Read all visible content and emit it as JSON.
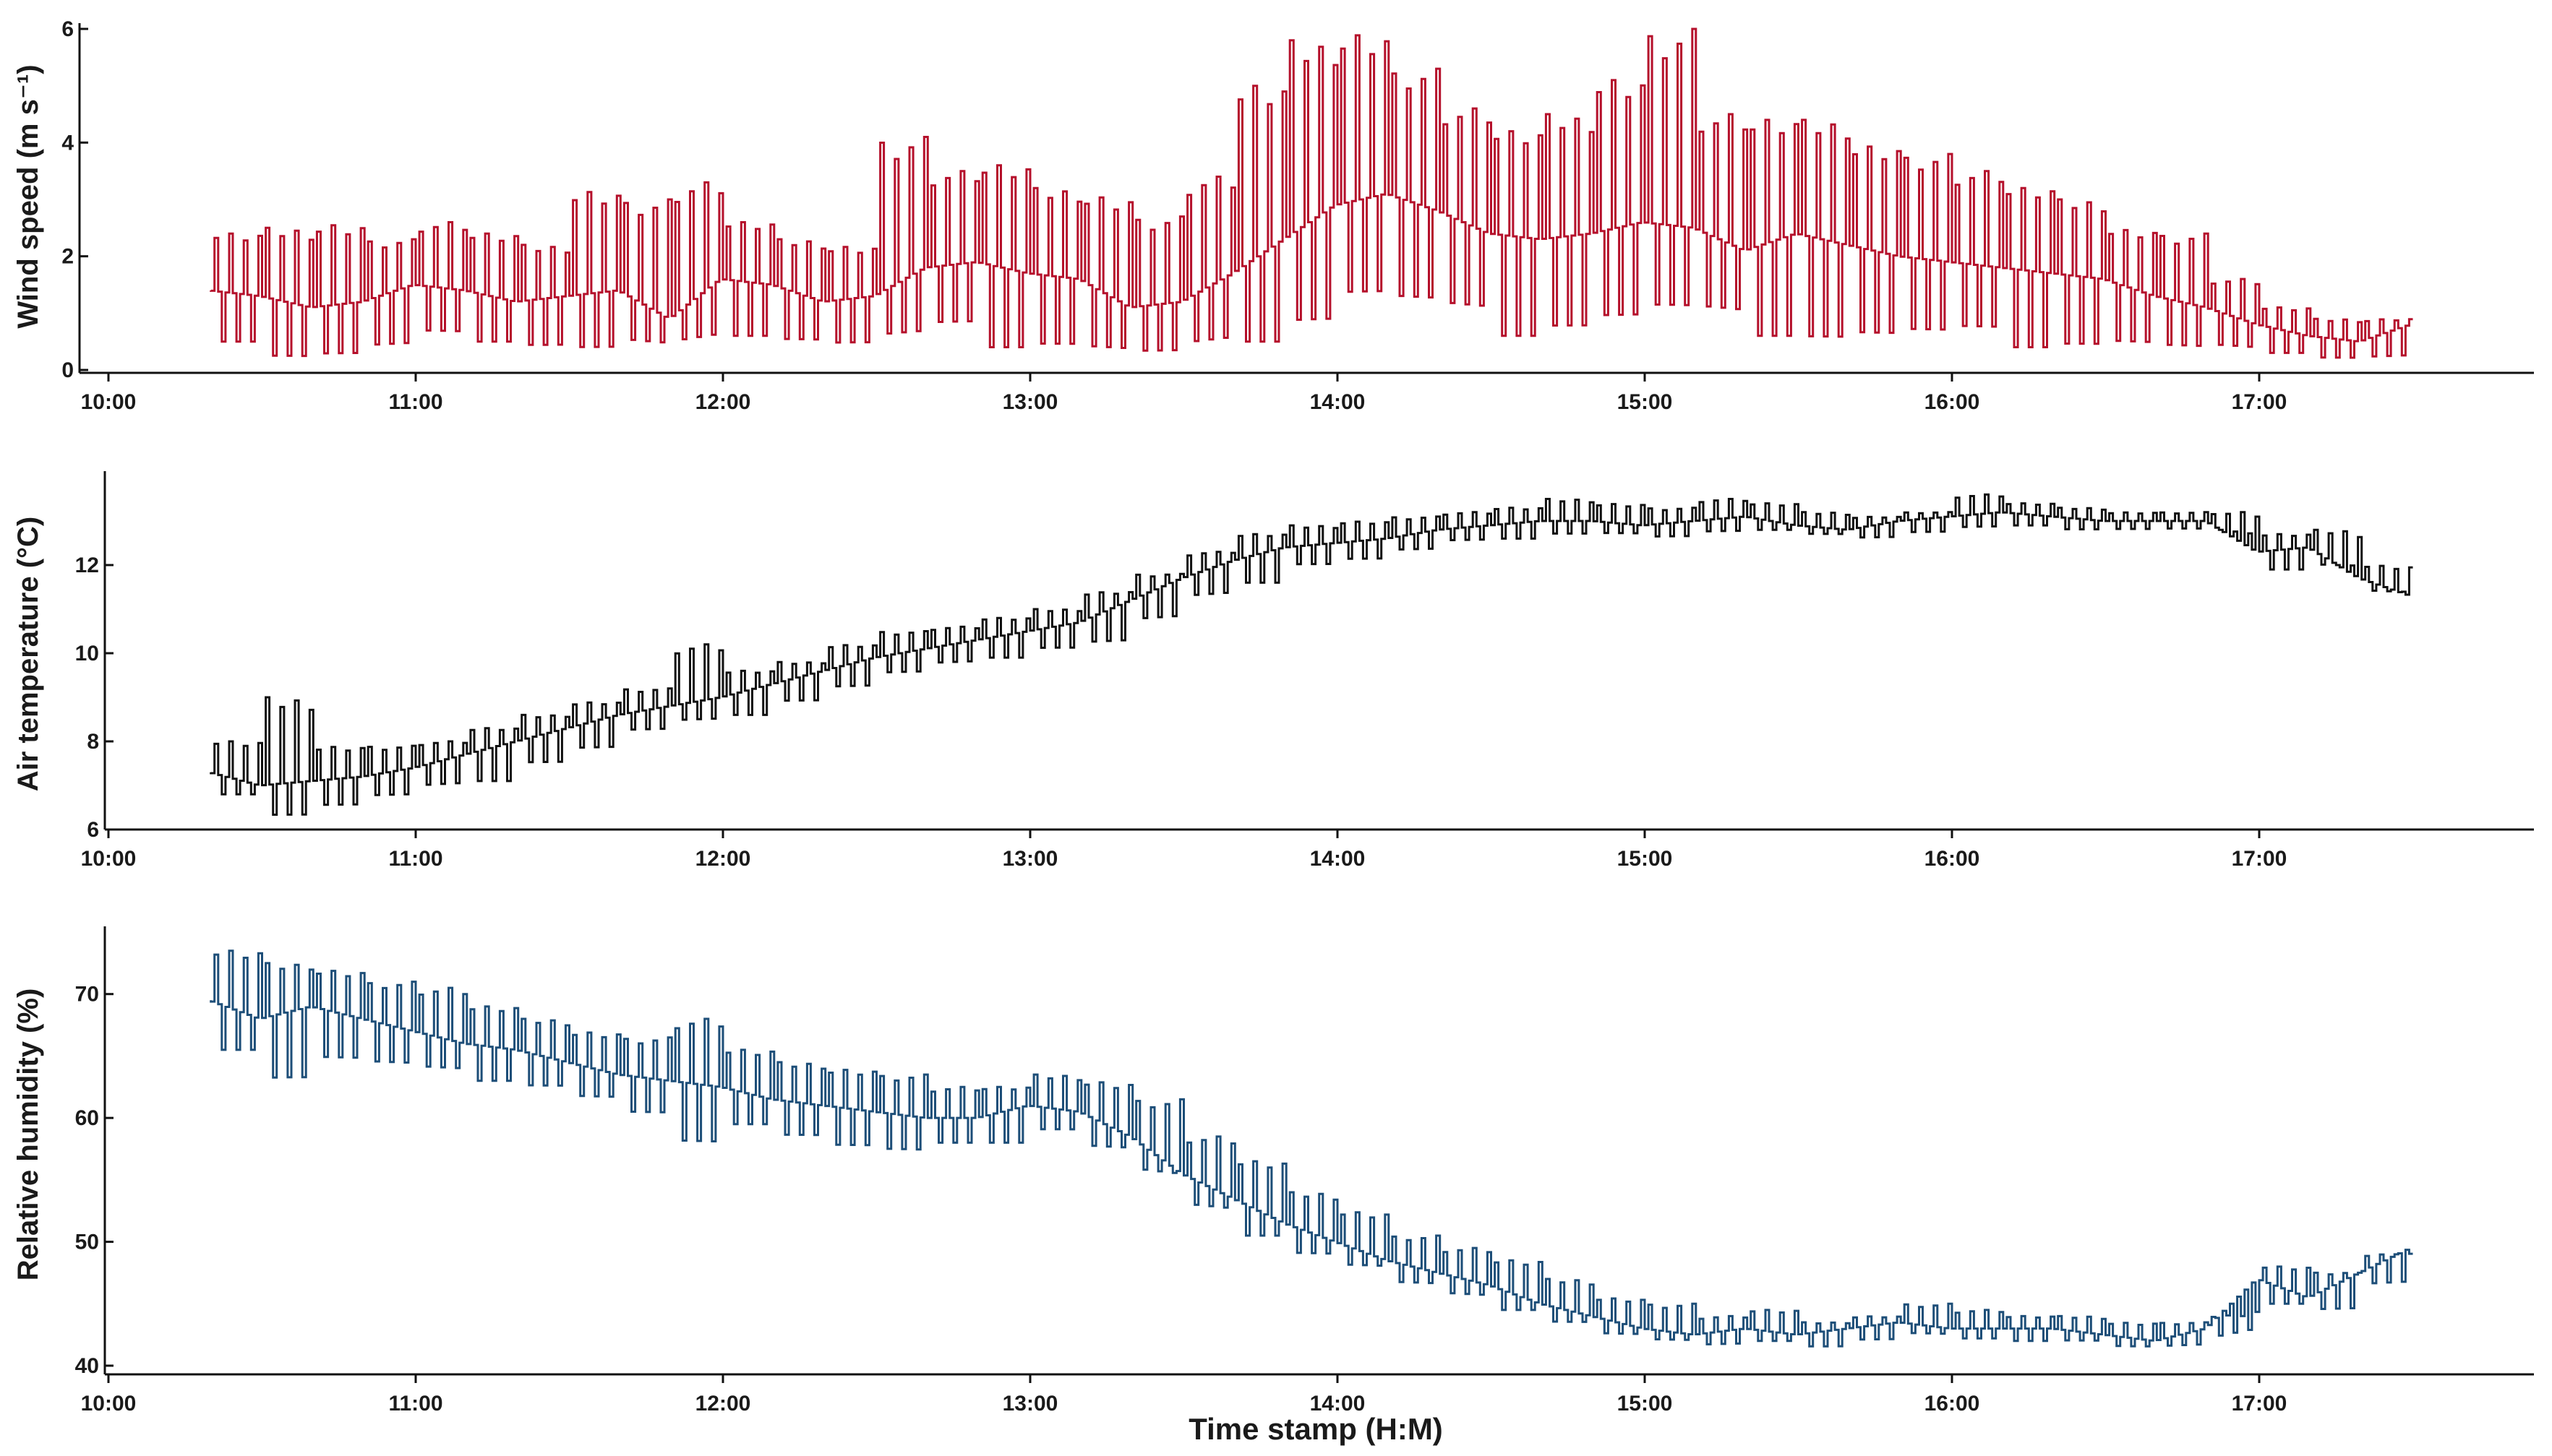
{
  "chart_data": [
    {
      "type": "line",
      "ylabel": "Wind speed (m s⁻¹)",
      "xlabel": "",
      "xlim": [
        "10:00",
        "18:00"
      ],
      "ylim": [
        0,
        6
      ],
      "yticks": [
        0,
        2,
        4,
        6
      ],
      "xticks": [
        "10:00",
        "11:00",
        "12:00",
        "13:00",
        "14:00",
        "15:00",
        "16:00",
        "17:00"
      ],
      "color": "#b5102b",
      "series": [
        {
          "x": [
            "10:20",
            "10:30",
            "10:40",
            "10:50",
            "11:00",
            "11:10",
            "11:20",
            "11:30",
            "11:40",
            "11:50",
            "12:00",
            "12:10",
            "12:20",
            "12:30",
            "12:40",
            "12:50",
            "13:00",
            "13:10",
            "13:20",
            "13:30",
            "13:40",
            "13:50",
            "14:00",
            "14:10",
            "14:20",
            "14:30",
            "14:40",
            "14:50",
            "15:00",
            "15:10",
            "15:20",
            "15:30",
            "15:40",
            "15:50",
            "16:00",
            "16:10",
            "16:20",
            "16:30",
            "16:40",
            "16:50",
            "17:00",
            "17:10",
            "17:20",
            "17:30"
          ],
          "values": [
            1.4,
            1.3,
            1.1,
            1.2,
            1.5,
            1.4,
            1.2,
            1.3,
            1.4,
            0.9,
            1.6,
            1.5,
            1.2,
            1.3,
            1.8,
            1.9,
            1.7,
            1.6,
            1.1,
            1.2,
            1.7,
            2.3,
            2.9,
            3.1,
            2.8,
            2.4,
            2.3,
            2.4,
            2.6,
            2.5,
            2.1,
            2.4,
            2.2,
            2.0,
            1.9,
            1.8,
            1.7,
            1.6,
            1.3,
            1.1,
            0.8,
            0.6,
            0.5,
            0.8
          ],
          "min": [
            0.5,
            0.2,
            0.2,
            0.3,
            0.5,
            0.5,
            0.4,
            0.3,
            0.4,
            0.4,
            0.6,
            0.5,
            0.4,
            0.5,
            0.6,
            0.4,
            0.4,
            0.3,
            0.2,
            0.3,
            0.5,
            0.8,
            1.2,
            1.0,
            0.8,
            0.6,
            0.7,
            0.8,
            0.9,
            0.8,
            0.6,
            0.5,
            0.5,
            0.5,
            0.5,
            0.4,
            0.4,
            0.4,
            0.3,
            0.3,
            0.3,
            0.2,
            0.2,
            0.3
          ],
          "max": [
            2.4,
            2.5,
            2.6,
            2.3,
            2.6,
            2.4,
            2.2,
            3.2,
            3.0,
            3.3,
            2.6,
            2.3,
            2.2,
            4.1,
            3.5,
            3.6,
            3.2,
            3.1,
            2.7,
            3.4,
            5.0,
            5.8,
            6.0,
            5.3,
            4.6,
            4.2,
            4.5,
            5.2,
            6.0,
            4.5,
            4.4,
            4.4,
            4.0,
            3.8,
            3.5,
            3.2,
            3.0,
            2.5,
            2.4,
            1.6,
            1.1,
            0.9,
            0.9,
            0.9
          ]
        }
      ]
    },
    {
      "type": "line",
      "ylabel": "Air temperature (°C)",
      "xlabel": "",
      "xlim": [
        "10:00",
        "18:00"
      ],
      "ylim": [
        6,
        14
      ],
      "yticks": [
        6,
        8,
        10,
        12
      ],
      "xticks": [
        "10:00",
        "11:00",
        "12:00",
        "13:00",
        "14:00",
        "15:00",
        "16:00",
        "17:00"
      ],
      "color": "#111111",
      "series": [
        {
          "x": [
            "10:20",
            "10:30",
            "10:40",
            "10:50",
            "11:00",
            "11:10",
            "11:20",
            "11:30",
            "11:40",
            "11:50",
            "12:00",
            "12:10",
            "12:20",
            "12:30",
            "12:40",
            "12:50",
            "13:00",
            "13:10",
            "13:20",
            "13:30",
            "13:40",
            "13:50",
            "14:00",
            "14:10",
            "14:20",
            "14:30",
            "14:40",
            "14:50",
            "15:00",
            "15:10",
            "15:20",
            "15:30",
            "15:40",
            "15:50",
            "16:00",
            "16:10",
            "16:20",
            "16:30",
            "16:40",
            "16:50",
            "17:00",
            "17:10",
            "17:20",
            "17:30"
          ],
          "values": [
            7.3,
            7.0,
            7.1,
            7.2,
            7.4,
            7.7,
            8.0,
            8.3,
            8.6,
            8.8,
            9.0,
            9.3,
            9.6,
            9.9,
            10.1,
            10.3,
            10.5,
            10.7,
            11.2,
            11.7,
            12.1,
            12.4,
            12.5,
            12.6,
            12.8,
            12.9,
            13.0,
            13.0,
            12.9,
            13.0,
            13.1,
            12.9,
            12.8,
            13.0,
            13.1,
            13.2,
            13.1,
            13.0,
            13.0,
            13.0,
            12.3,
            12.4,
            11.7,
            11.3
          ],
          "min": [
            6.8,
            6.3,
            6.5,
            6.7,
            6.9,
            7.1,
            7.5,
            7.8,
            8.2,
            8.4,
            8.6,
            8.9,
            9.2,
            9.5,
            9.7,
            9.9,
            10.1,
            10.2,
            10.7,
            11.2,
            11.6,
            12.0,
            12.1,
            12.3,
            12.5,
            12.6,
            12.7,
            12.7,
            12.6,
            12.7,
            12.8,
            12.7,
            12.6,
            12.7,
            12.8,
            12.9,
            12.8,
            12.8,
            12.8,
            12.8,
            11.9,
            12.0,
            11.4,
            11.3
          ],
          "max": [
            8.0,
            9.0,
            7.9,
            7.9,
            8.0,
            8.3,
            8.6,
            8.9,
            9.2,
            10.2,
            9.6,
            9.8,
            10.2,
            10.5,
            10.6,
            10.8,
            11.0,
            11.4,
            11.8,
            12.3,
            12.7,
            12.9,
            13.0,
            13.1,
            13.2,
            13.3,
            13.5,
            13.4,
            13.3,
            13.5,
            13.4,
            13.2,
            13.1,
            13.2,
            13.6,
            13.4,
            13.3,
            13.2,
            13.2,
            13.2,
            12.7,
            12.8,
            12.0,
            11.4
          ]
        }
      ]
    },
    {
      "type": "line",
      "ylabel": "Relative humidity  (%)",
      "xlabel": "Time stamp (H:M)",
      "xlim": [
        "10:00",
        "18:00"
      ],
      "ylim": [
        40,
        75
      ],
      "yticks": [
        40,
        50,
        60,
        70
      ],
      "xticks": [
        "10:00",
        "11:00",
        "12:00",
        "13:00",
        "14:00",
        "15:00",
        "16:00",
        "17:00"
      ],
      "color": "#1d4e78",
      "series": [
        {
          "x": [
            "10:20",
            "10:30",
            "10:40",
            "10:50",
            "11:00",
            "11:10",
            "11:20",
            "11:30",
            "11:40",
            "11:50",
            "12:00",
            "12:10",
            "12:20",
            "12:30",
            "12:40",
            "12:50",
            "13:00",
            "13:10",
            "13:20",
            "13:30",
            "13:40",
            "13:50",
            "14:00",
            "14:10",
            "14:20",
            "14:30",
            "14:40",
            "14:50",
            "15:00",
            "15:10",
            "15:20",
            "15:30",
            "15:40",
            "15:50",
            "16:00",
            "16:10",
            "16:20",
            "16:30",
            "16:40",
            "16:50",
            "17:00",
            "17:10",
            "17:20",
            "17:30"
          ],
          "values": [
            69.5,
            68.0,
            69.0,
            68.0,
            67.0,
            66.0,
            65.5,
            64.5,
            63.5,
            63.0,
            62.5,
            61.5,
            61.0,
            60.5,
            60.0,
            60.0,
            61.0,
            60.5,
            58.5,
            55.5,
            53.5,
            51.5,
            50.0,
            48.5,
            47.5,
            46.5,
            45.0,
            44.0,
            43.0,
            42.5,
            43.0,
            42.5,
            43.0,
            43.5,
            43.0,
            43.0,
            43.0,
            42.5,
            42.0,
            43.0,
            47.0,
            45.5,
            47.5,
            49.5
          ],
          "min": [
            65.5,
            63.0,
            64.5,
            64.0,
            63.5,
            63.0,
            62.5,
            61.5,
            60.0,
            57.0,
            59.5,
            58.5,
            57.5,
            57.0,
            57.5,
            58.0,
            59.0,
            57.5,
            55.5,
            52.5,
            50.5,
            49.0,
            48.0,
            46.5,
            45.5,
            44.5,
            43.5,
            42.5,
            42.0,
            41.5,
            42.0,
            41.5,
            42.0,
            42.5,
            42.0,
            42.0,
            42.0,
            41.5,
            41.5,
            42.0,
            45.0,
            44.5,
            46.5,
            49.0
          ],
          "max": [
            73.5,
            72.5,
            72.0,
            71.0,
            70.5,
            69.0,
            68.0,
            67.0,
            66.5,
            68.0,
            65.5,
            64.5,
            64.0,
            63.5,
            62.5,
            62.5,
            63.5,
            63.0,
            61.5,
            58.5,
            56.5,
            54.0,
            52.5,
            50.5,
            49.5,
            48.5,
            47.0,
            45.5,
            45.0,
            44.0,
            44.5,
            43.5,
            44.0,
            45.0,
            44.5,
            44.0,
            44.0,
            43.5,
            43.5,
            44.0,
            48.0,
            47.5,
            49.0,
            50.0
          ]
        }
      ]
    }
  ]
}
